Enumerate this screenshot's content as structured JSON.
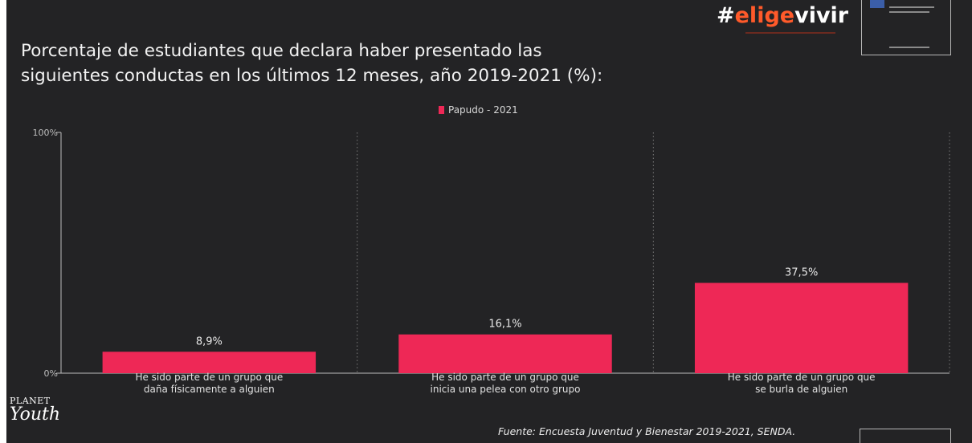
{
  "title_line1": "Porcentaje de estudiantes que declara haber presentado las",
  "title_line2": "siguientes conductas en los últimos 12 meses, año 2019-2021 (%):",
  "brand": {
    "hash": "#",
    "accent": "elige",
    "rest": "vivir"
  },
  "planet_youth": {
    "line1": "PLANET",
    "line2": "Youth"
  },
  "source": "Fuente: Encuesta Juventud y Bienestar 2019-2021, SENDA.",
  "colors": {
    "background": "#232325",
    "bar": "#ee2856",
    "brand_accent": "#ff5a2a",
    "text": "#f2f2f2"
  },
  "chart_data": {
    "type": "bar",
    "categories": [
      [
        "He sido parte de un grupo que",
        "daña físicamente a alguien"
      ],
      [
        "He sido parte de un grupo que",
        "inicia una pelea con otro grupo"
      ],
      [
        "He sido parte de un grupo que",
        "se burla de alguien"
      ]
    ],
    "series": [
      {
        "name": "Papudo - 2021",
        "values": [
          8.9,
          16.1,
          37.5
        ],
        "labels": [
          "8,9%",
          "16,1%",
          "37,5%"
        ]
      }
    ],
    "y_ticks": [
      0,
      100
    ],
    "y_tick_labels": [
      "0%",
      "100%"
    ],
    "ylim": [
      0,
      100
    ],
    "legend": "top-center",
    "grid": "dotted vertical separators"
  }
}
